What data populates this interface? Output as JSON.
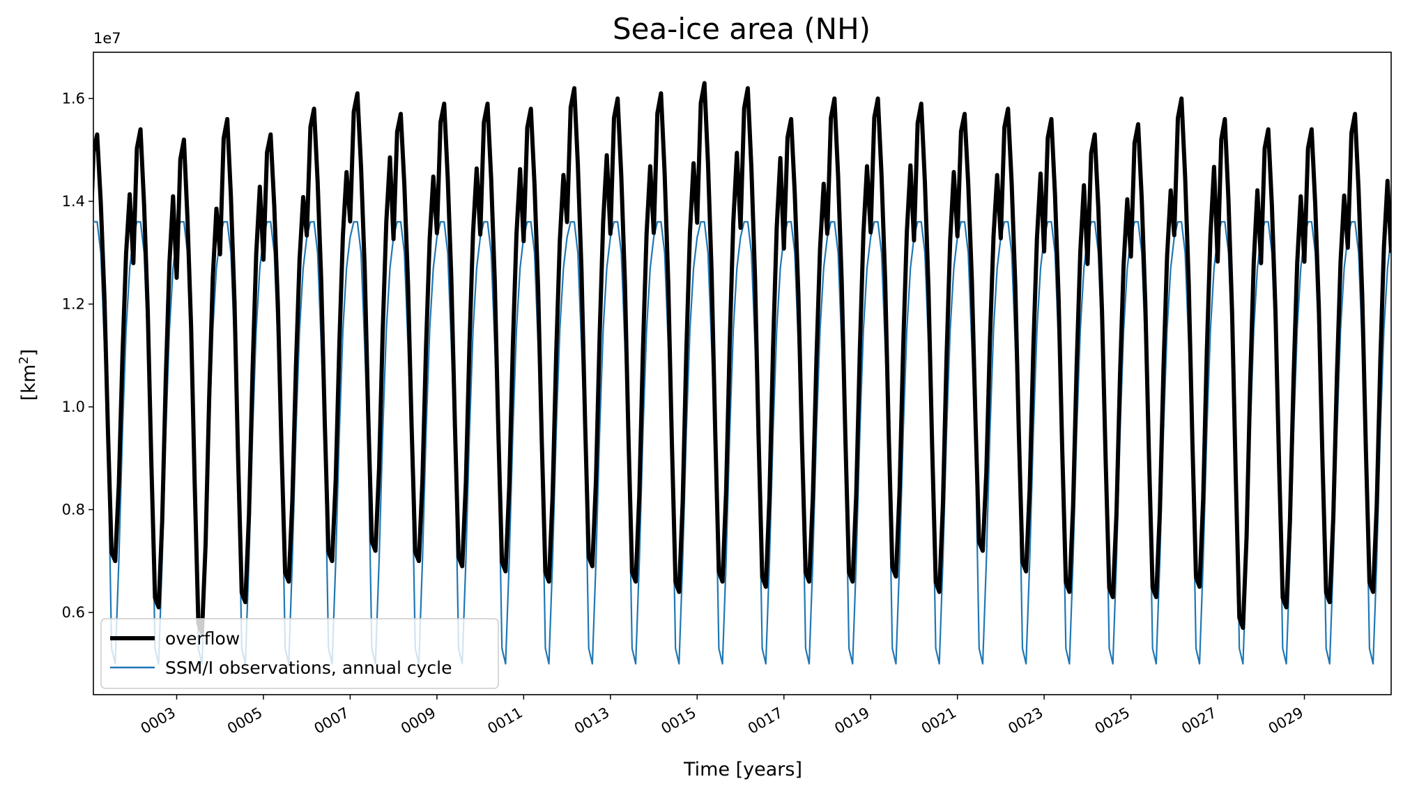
{
  "chart_data": {
    "type": "line",
    "title": "Sea-ice area (NH)",
    "xlabel": "Time [years]",
    "ylabel_prefix": "[km",
    "ylabel_sup": "2",
    "ylabel_suffix": "]",
    "y_offset_label": "1e7",
    "xlim": [
      1.08,
      31.0
    ],
    "ylim": [
      0.44,
      1.69
    ],
    "y_ticks": [
      {
        "value": 0.6,
        "label": "0.6"
      },
      {
        "value": 0.8,
        "label": "0.8"
      },
      {
        "value": 1.0,
        "label": "1.0"
      },
      {
        "value": 1.2,
        "label": "1.2"
      },
      {
        "value": 1.4,
        "label": "1.4"
      },
      {
        "value": 1.6,
        "label": "1.6"
      }
    ],
    "x_ticks": [
      {
        "value": 3,
        "label": "0003"
      },
      {
        "value": 5,
        "label": "0005"
      },
      {
        "value": 7,
        "label": "0007"
      },
      {
        "value": 9,
        "label": "0009"
      },
      {
        "value": 11,
        "label": "0011"
      },
      {
        "value": 13,
        "label": "0013"
      },
      {
        "value": 15,
        "label": "0015"
      },
      {
        "value": 17,
        "label": "0017"
      },
      {
        "value": 19,
        "label": "0019"
      },
      {
        "value": 21,
        "label": "0021"
      },
      {
        "value": 23,
        "label": "0023"
      },
      {
        "value": 25,
        "label": "0025"
      },
      {
        "value": 27,
        "label": "0027"
      },
      {
        "value": 29,
        "label": "0029"
      }
    ],
    "legend_position": "lower-left",
    "series": [
      {
        "name": "overflow",
        "color": "#000000",
        "start_year": 1,
        "annual_max_1e7_km2": [
          1.53,
          1.54,
          1.52,
          1.56,
          1.53,
          1.58,
          1.61,
          1.57,
          1.59,
          1.59,
          1.58,
          1.62,
          1.6,
          1.61,
          1.63,
          1.62,
          1.56,
          1.6,
          1.6,
          1.59,
          1.57,
          1.58,
          1.56,
          1.53,
          1.55,
          1.6,
          1.56,
          1.54,
          1.54,
          1.57
        ],
        "annual_min_1e7_km2": [
          0.7,
          0.61,
          0.56,
          0.62,
          0.66,
          0.7,
          0.72,
          0.7,
          0.69,
          0.68,
          0.66,
          0.69,
          0.66,
          0.64,
          0.66,
          0.65,
          0.66,
          0.66,
          0.67,
          0.64,
          0.72,
          0.68,
          0.64,
          0.63,
          0.63,
          0.65,
          0.57,
          0.61,
          0.62,
          0.64
        ],
        "last_value_1e7_km2": 1.3
      },
      {
        "name": "SSM/I observations, annual cycle",
        "color": "#1f77b4",
        "start_year": 1,
        "monthly_cycle_1e7_km2": [
          1.33,
          1.36,
          1.36,
          1.3,
          1.12,
          0.92,
          0.53,
          0.5,
          0.7,
          0.95,
          1.15,
          1.27
        ]
      }
    ]
  }
}
